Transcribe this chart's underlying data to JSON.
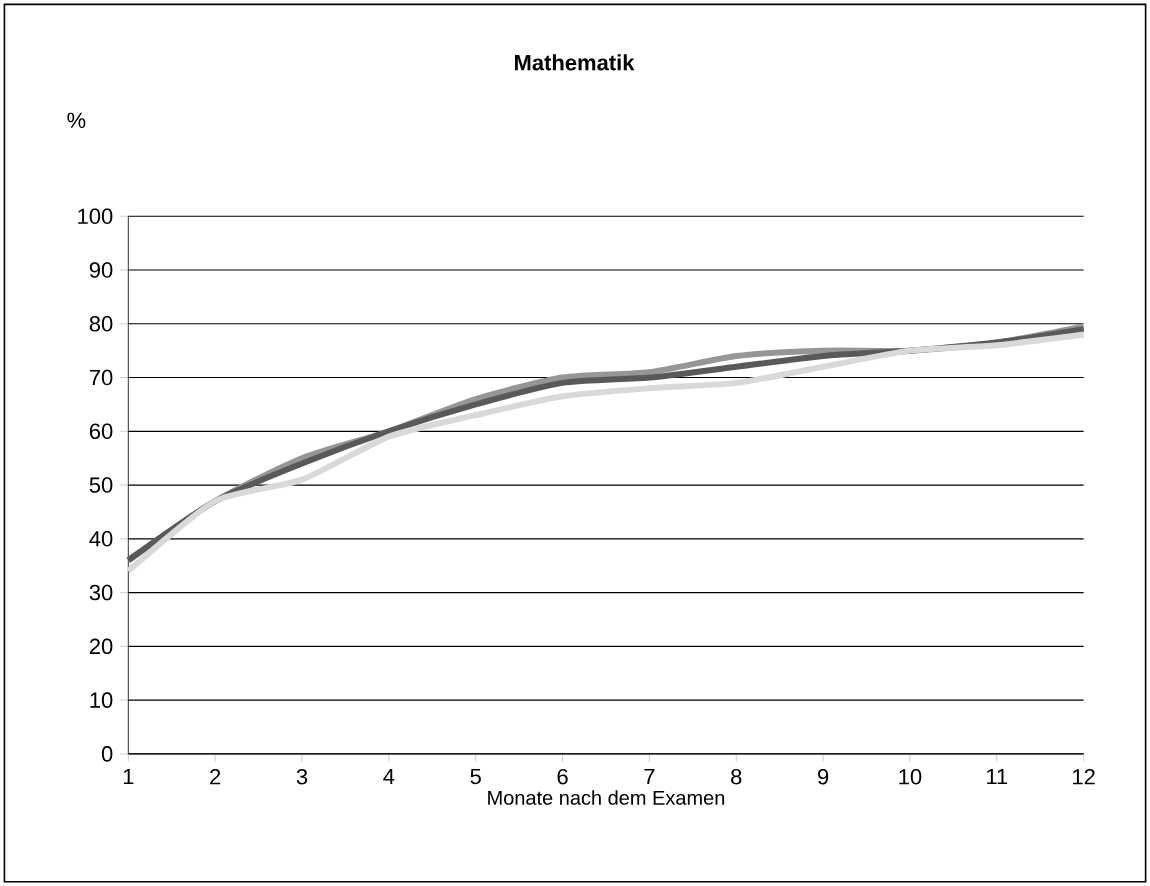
{
  "chart_data": {
    "type": "line",
    "title": "Mathematik",
    "ylabel": "%",
    "xlabel": "Monate nach dem Examen",
    "x": [
      1,
      2,
      3,
      4,
      5,
      6,
      7,
      8,
      9,
      10,
      11,
      12
    ],
    "series": [
      {
        "color": "#969696",
        "values": [
          36,
          47,
          55,
          60,
          66,
          70,
          71,
          74,
          75,
          75,
          76.5,
          79.5
        ]
      },
      {
        "color": "#595959",
        "values": [
          36,
          47,
          54,
          60,
          65,
          69,
          70,
          72,
          74,
          75,
          76.5,
          79
        ]
      },
      {
        "color": "#d9d9d9",
        "values": [
          34,
          47,
          51,
          59,
          63,
          66.5,
          68,
          69,
          72,
          75,
          76,
          78
        ]
      }
    ],
    "xlim": [
      1,
      12
    ],
    "xticks": [
      1,
      2,
      3,
      4,
      5,
      6,
      7,
      8,
      9,
      10,
      11,
      12
    ],
    "ylim": [
      0,
      100
    ],
    "yticks": [
      0,
      10,
      20,
      30,
      40,
      50,
      60,
      70,
      80,
      90,
      100
    ],
    "grid": "y",
    "marker": "none",
    "line_style": "solid"
  }
}
